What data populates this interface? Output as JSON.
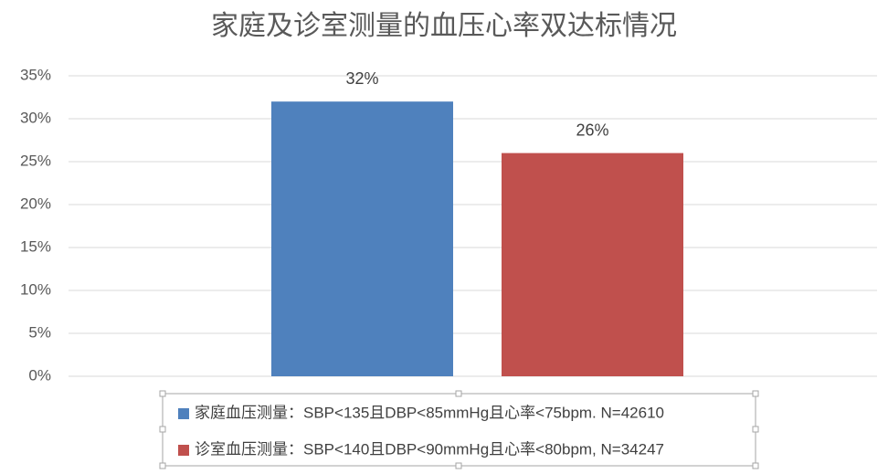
{
  "chart_data": {
    "type": "bar",
    "title": "家庭及诊室测量的血压心率双达标情况",
    "categories": [
      null
    ],
    "series": [
      {
        "name": "家庭血压测量：SBP<135且DBP<85mmHg且心率<75bpm. N=42610",
        "color": "#4f81bd",
        "values": [
          32
        ],
        "value_labels": [
          "32%"
        ]
      },
      {
        "name": "诊室血压测量：SBP<140且DBP<90mmHg且心率<80bpm, N=34247",
        "color": "#c0504d",
        "values": [
          26
        ],
        "value_labels": [
          "26%"
        ]
      }
    ],
    "ylim": [
      0,
      35
    ],
    "yticks": [
      {
        "value": 0,
        "label": "0%"
      },
      {
        "value": 5,
        "label": "5%"
      },
      {
        "value": 10,
        "label": "10%"
      },
      {
        "value": 15,
        "label": "15%"
      },
      {
        "value": 20,
        "label": "20%"
      },
      {
        "value": 25,
        "label": "25%"
      },
      {
        "value": 30,
        "label": "30%"
      },
      {
        "value": 35,
        "label": "35%"
      }
    ],
    "grid": true,
    "legend": "bottom"
  }
}
